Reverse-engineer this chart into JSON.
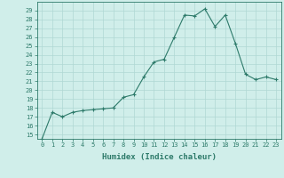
{
  "xlabel": "Humidex (Indice chaleur)",
  "x": [
    0,
    1,
    2,
    3,
    4,
    5,
    6,
    7,
    8,
    9,
    10,
    11,
    12,
    13,
    14,
    15,
    16,
    17,
    18,
    19,
    20,
    21,
    22,
    23
  ],
  "y": [
    14.5,
    17.5,
    17.0,
    17.5,
    17.7,
    17.8,
    17.9,
    18.0,
    19.2,
    19.5,
    21.5,
    23.2,
    23.5,
    26.0,
    28.5,
    28.4,
    29.2,
    27.2,
    28.5,
    25.3,
    21.8,
    21.2,
    21.5,
    21.2
  ],
  "line_color": "#2d7a6a",
  "marker_color": "#2d7a6a",
  "bg_color": "#d0eeea",
  "grid_color": "#b0d8d4",
  "axis_color": "#2d7a6a",
  "ylim_min": 14.5,
  "ylim_max": 30.0,
  "yticks": [
    15,
    16,
    17,
    18,
    19,
    20,
    21,
    22,
    23,
    24,
    25,
    26,
    27,
    28,
    29
  ],
  "xticks": [
    0,
    1,
    2,
    3,
    4,
    5,
    6,
    7,
    8,
    9,
    10,
    11,
    12,
    13,
    14,
    15,
    16,
    17,
    18,
    19,
    20,
    21,
    22,
    23
  ],
  "tick_fontsize": 5.0,
  "label_fontsize": 6.5
}
